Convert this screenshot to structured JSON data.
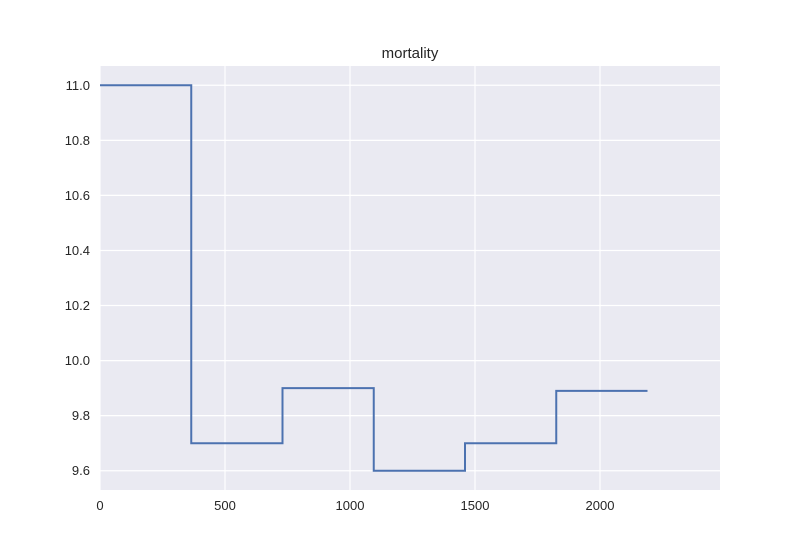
{
  "chart_data": {
    "type": "line",
    "title": "mortality",
    "xlabel": "",
    "ylabel": "",
    "step": "post",
    "xlim": [
      0,
      2480
    ],
    "ylim": [
      9.53,
      11.07
    ],
    "xticks": [
      0,
      500,
      1000,
      1500,
      2000
    ],
    "xtick_labels": [
      "0",
      "500",
      "1000",
      "1500",
      "2000"
    ],
    "yticks": [
      9.6,
      9.8,
      10.0,
      10.2,
      10.4,
      10.6,
      10.8,
      11.0
    ],
    "ytick_labels": [
      "9.6",
      "9.8",
      "10.0",
      "10.2",
      "10.4",
      "10.6",
      "10.8",
      "11.0"
    ],
    "grid": true,
    "colors": {
      "line": "#4c72b0",
      "background": "#eaeaf2",
      "grid": "#ffffff",
      "text": "#262626"
    },
    "series": [
      {
        "x": [
          0,
          365,
          730,
          1095,
          1460,
          1825,
          2190
        ],
        "values": [
          11.0,
          9.7,
          9.9,
          9.6,
          9.7,
          9.89,
          9.89
        ]
      }
    ]
  }
}
